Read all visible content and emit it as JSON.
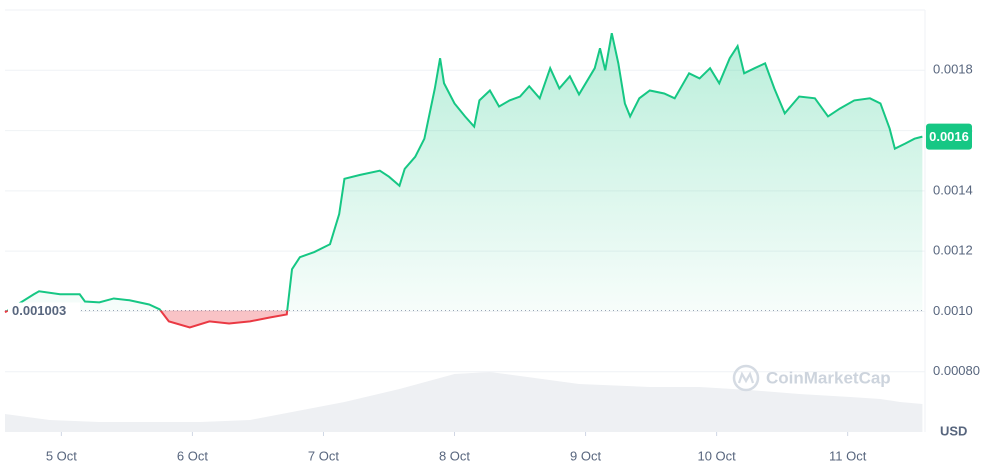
{
  "chart_data": {
    "type": "line",
    "currency": "USD",
    "watermark": "CoinMarketCap",
    "baseline": 0.001003,
    "last_price_label": "0.0016",
    "up_color": "#16c784",
    "down_color": "#ea3943",
    "grid": true,
    "xlim": [
      4.57,
      11.59
    ],
    "ylim": [
      0.0006,
      0.002
    ],
    "xticks": [
      {
        "value": 5,
        "label": "5 Oct"
      },
      {
        "value": 6,
        "label": "6 Oct"
      },
      {
        "value": 7,
        "label": "7 Oct"
      },
      {
        "value": 8,
        "label": "8 Oct"
      },
      {
        "value": 9,
        "label": "9 Oct"
      },
      {
        "value": 10,
        "label": "10 Oct"
      },
      {
        "value": 11,
        "label": "11 Oct"
      }
    ],
    "yticks": [
      {
        "value": 0.0008,
        "label": "0.00080"
      },
      {
        "value": 0.001,
        "label": "0.0010"
      },
      0.0012,
      0.0014,
      0.0016,
      0.0018
    ],
    "x": [
      4.57,
      4.79,
      4.83,
      4.99,
      5.14,
      5.18,
      5.29,
      5.4,
      5.52,
      5.67,
      5.75,
      5.82,
      5.98,
      6.13,
      6.28,
      6.44,
      6.59,
      6.72,
      6.76,
      6.82,
      6.93,
      7.05,
      7.12,
      7.16,
      7.28,
      7.43,
      7.5,
      7.58,
      7.62,
      7.7,
      7.77,
      7.85,
      7.89,
      7.92,
      8.0,
      8.08,
      8.15,
      8.19,
      8.27,
      8.34,
      8.42,
      8.5,
      8.57,
      8.65,
      8.73,
      8.8,
      8.88,
      8.95,
      9.07,
      9.11,
      9.15,
      9.2,
      9.25,
      9.3,
      9.34,
      9.41,
      9.49,
      9.6,
      9.68,
      9.79,
      9.87,
      9.95,
      10.02,
      10.1,
      10.16,
      10.21,
      10.29,
      10.37,
      10.44,
      10.52,
      10.63,
      10.75,
      10.85,
      10.94,
      11.05,
      11.17,
      11.25,
      11.32,
      11.36,
      11.44,
      11.51,
      11.57
    ],
    "values": [
      0.000997,
      0.001057,
      0.001067,
      0.001057,
      0.001057,
      0.001033,
      0.00103,
      0.001043,
      0.001037,
      0.001023,
      0.001007,
      0.000967,
      0.000947,
      0.000967,
      0.00096,
      0.000967,
      0.00098,
      0.00099,
      0.00114,
      0.00118,
      0.001197,
      0.001223,
      0.001323,
      0.00144,
      0.001453,
      0.001467,
      0.001447,
      0.001417,
      0.001473,
      0.001513,
      0.001573,
      0.00174,
      0.00184,
      0.001757,
      0.00169,
      0.001647,
      0.001613,
      0.0017,
      0.001733,
      0.00168,
      0.0017,
      0.001713,
      0.001747,
      0.001707,
      0.001807,
      0.00174,
      0.00178,
      0.00172,
      0.001807,
      0.001873,
      0.0018,
      0.001923,
      0.001823,
      0.00169,
      0.001647,
      0.001707,
      0.001733,
      0.001723,
      0.001707,
      0.00179,
      0.001773,
      0.001807,
      0.001757,
      0.00184,
      0.00188,
      0.00179,
      0.001807,
      0.001823,
      0.00174,
      0.001657,
      0.001713,
      0.001707,
      0.001647,
      0.001673,
      0.0017,
      0.001707,
      0.00169,
      0.001607,
      0.00154,
      0.001557,
      0.001573,
      0.00158
    ],
    "volume": {
      "color": "#eef0f3",
      "lim": [
        0,
        100
      ],
      "x": [
        4.57,
        4.91,
        5.29,
        5.67,
        6.06,
        6.44,
        7.16,
        7.58,
        8.0,
        8.27,
        8.5,
        8.95,
        9.49,
        9.87,
        10.25,
        10.63,
        11.02,
        11.25,
        11.4,
        11.57
      ],
      "values": [
        18,
        12,
        10,
        10,
        10,
        12,
        30,
        43,
        58,
        60,
        56,
        48,
        45,
        45,
        42,
        38,
        35,
        33,
        30,
        28
      ]
    }
  }
}
